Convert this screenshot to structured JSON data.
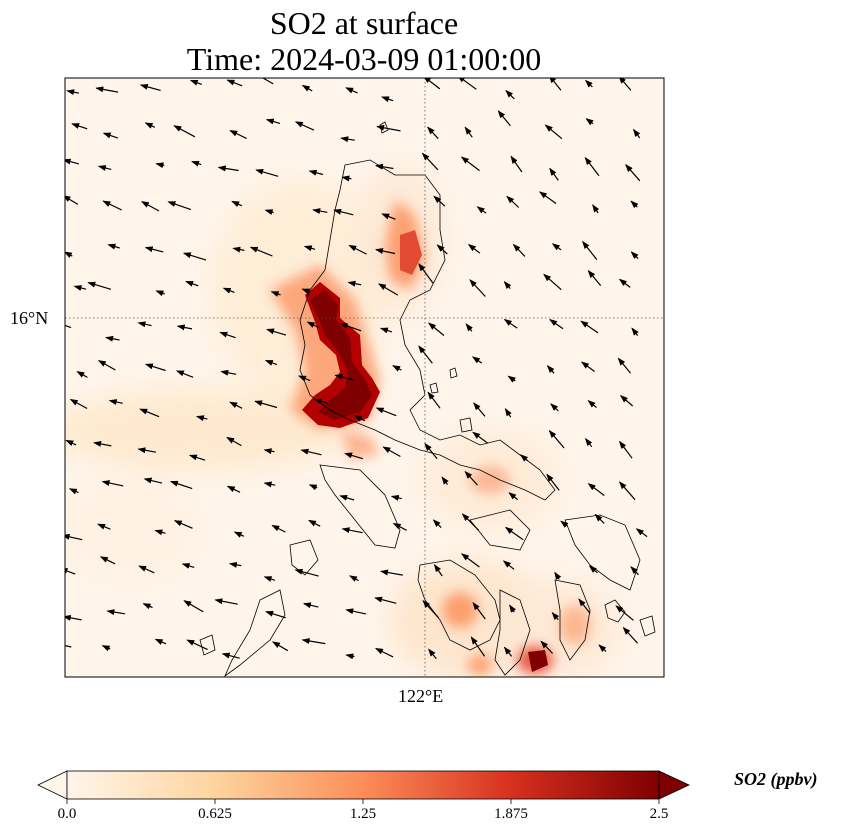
{
  "title_line1": "SO2 at surface",
  "title_line2": "Time: 2024-03-09 01:00:00",
  "map": {
    "lat_gridline_label": "16°N",
    "lon_gridline_label": "122°E",
    "gridline_style": "dotted",
    "background_color": "#fff5eb"
  },
  "colorbar": {
    "label": "SO2 (ppbv)",
    "ticks": [
      "0.0",
      "0.625",
      "1.25",
      "1.875",
      "2.5"
    ],
    "colormap": "OrRd",
    "colors": [
      "#fff5eb",
      "#fdd49e",
      "#fc8d59",
      "#d7301f",
      "#7f0000"
    ],
    "extend": "both"
  }
}
